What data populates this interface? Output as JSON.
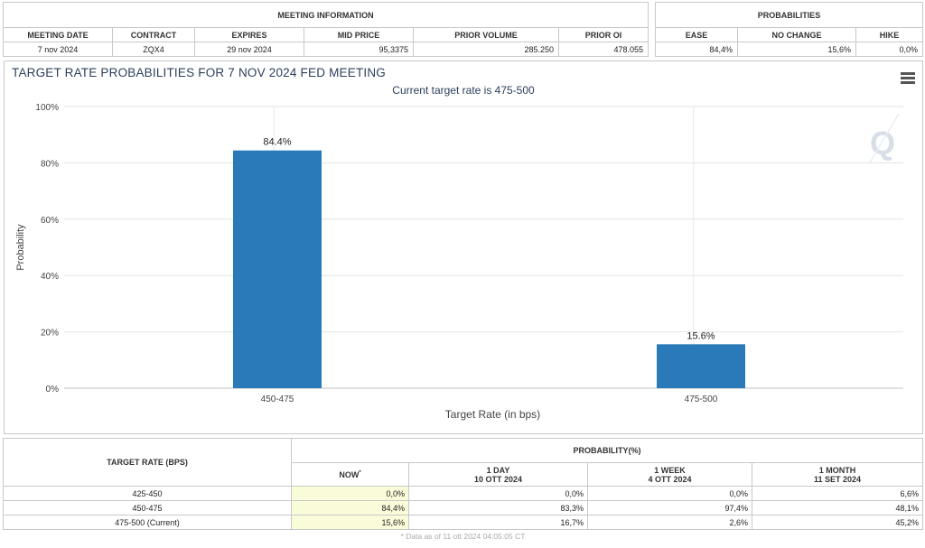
{
  "meeting_info": {
    "group_label": "MEETING INFORMATION",
    "headers": [
      "MEETING DATE",
      "CONTRACT",
      "EXPIRES",
      "MID PRICE",
      "PRIOR VOLUME",
      "PRIOR OI"
    ],
    "values": [
      "7 nov 2024",
      "ZQX4",
      "29 nov 2024",
      "95,3375",
      "285.250",
      "478.055"
    ]
  },
  "probabilities": {
    "group_label": "PROBABILITIES",
    "headers": [
      "EASE",
      "NO CHANGE",
      "HIKE"
    ],
    "values": [
      "84,4%",
      "15,6%",
      "0,0%"
    ]
  },
  "chart": {
    "menu_icon": "hamburger-menu-icon",
    "watermark_icon": "q-logo-icon",
    "bar_color": "#2a7ab9"
  },
  "chart_data": {
    "type": "bar",
    "title": "TARGET RATE PROBABILITIES FOR 7 NOV 2024 FED MEETING",
    "subtitle": "Current target rate is 475-500",
    "xlabel": "Target Rate (in bps)",
    "ylabel": "Probability",
    "categories": [
      "450-475",
      "475-500"
    ],
    "values": [
      84.4,
      15.6
    ],
    "data_labels": [
      "84.4%",
      "15.6%"
    ],
    "ylim": [
      0,
      100
    ],
    "yticks": [
      "0%",
      "20%",
      "40%",
      "60%",
      "80%",
      "100%"
    ],
    "grid": true,
    "legend": "none"
  },
  "bottom_table": {
    "target_rate_header": "TARGET RATE (BPS)",
    "probability_header": "PROBABILITY(%)",
    "columns": [
      {
        "line1": "NOW",
        "line2": "",
        "sup": "*"
      },
      {
        "line1": "1 DAY",
        "line2": "10 OTT 2024"
      },
      {
        "line1": "1 WEEK",
        "line2": "4 OTT 2024"
      },
      {
        "line1": "1 MONTH",
        "line2": "11 SET 2024"
      }
    ],
    "rows": [
      {
        "rate": "425-450",
        "values": [
          "0,0%",
          "0,0%",
          "0,0%",
          "6,6%"
        ]
      },
      {
        "rate": "450-475",
        "values": [
          "84,4%",
          "83,3%",
          "97,4%",
          "48,1%"
        ]
      },
      {
        "rate": "475-500 (Current)",
        "values": [
          "15,6%",
          "16,7%",
          "2,6%",
          "45,2%"
        ]
      }
    ],
    "footnote": "* Data as of 11 ott 2024 04:05:05 CT"
  }
}
